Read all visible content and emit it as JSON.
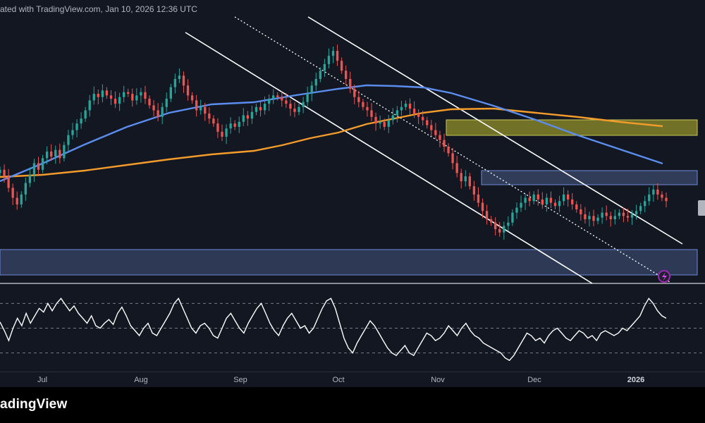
{
  "header": {
    "text": "ated with TradingView.com, Jan 10, 2026 12:36 UTC"
  },
  "footer": {
    "brand": "adingView"
  },
  "colors": {
    "background": "#131722",
    "candle_up": "#26a69a",
    "candle_down": "#ef5350",
    "ma_blue": "#5b8def",
    "ma_orange": "#f39c2b",
    "channel": "#ffffff",
    "zone_yellow": "#8a8a2a",
    "zone_blue": "#3b4a6b",
    "oscillator": "#ffffff"
  },
  "chart_data": {
    "type": "candlestick",
    "title": "",
    "x_axis": {
      "labels": [
        "Jul",
        "Aug",
        "Sep",
        "Oct",
        "Nov",
        "Dec",
        "2026"
      ],
      "bold_labels": [
        "2026"
      ]
    },
    "date_range": [
      "2025-06-16",
      "2026-01-10"
    ],
    "price_scale": "hidden (cropped)",
    "close_series_normalized": [
      0.48,
      0.44,
      0.37,
      0.31,
      0.27,
      0.33,
      0.4,
      0.45,
      0.52,
      0.48,
      0.55,
      0.59,
      0.56,
      0.6,
      0.55,
      0.63,
      0.69,
      0.72,
      0.76,
      0.79,
      0.84,
      0.9,
      0.94,
      0.92,
      0.96,
      0.93,
      0.91,
      0.88,
      0.92,
      0.95,
      0.94,
      0.9,
      0.93,
      0.95,
      0.91,
      0.87,
      0.84,
      0.8,
      0.86,
      0.91,
      0.98,
      1.03,
      1.05,
      0.99,
      0.93,
      0.9,
      0.84,
      0.86,
      0.82,
      0.79,
      0.76,
      0.71,
      0.68,
      0.73,
      0.76,
      0.74,
      0.77,
      0.81,
      0.79,
      0.83,
      0.86,
      0.84,
      0.88,
      0.91,
      0.93,
      0.92,
      0.9,
      0.88,
      0.85,
      0.83,
      0.86,
      0.89,
      0.94,
      0.99,
      1.03,
      1.08,
      1.12,
      1.17,
      1.2,
      1.14,
      1.08,
      1.03,
      0.97,
      0.92,
      0.89,
      0.86,
      0.84,
      0.8,
      0.76,
      0.77,
      0.74,
      0.78,
      0.81,
      0.84,
      0.86,
      0.88,
      0.85,
      0.82,
      0.8,
      0.78,
      0.75,
      0.72,
      0.69,
      0.66,
      0.62,
      0.58,
      0.52,
      0.46,
      0.41,
      0.44,
      0.38,
      0.33,
      0.28,
      0.23,
      0.18,
      0.16,
      0.12,
      0.1,
      0.14,
      0.16,
      0.22,
      0.25,
      0.28,
      0.31,
      0.29,
      0.33,
      0.3,
      0.27,
      0.31,
      0.28,
      0.26,
      0.29,
      0.33,
      0.3,
      0.27,
      0.24,
      0.21,
      0.18,
      0.2,
      0.17,
      0.19,
      0.22,
      0.2,
      0.18,
      0.2,
      0.22,
      0.2,
      0.19,
      0.21,
      0.23,
      0.26,
      0.29,
      0.33,
      0.36,
      0.33,
      0.31,
      0.29
    ],
    "moving_averages": [
      {
        "name": "",
        "color": "#5b8def",
        "shape": "rising then falling"
      },
      {
        "name": "",
        "color": "#f39c2b",
        "shape": "slow rising then flattening"
      }
    ],
    "zones": [
      {
        "label": "",
        "color": "#8a8a2a",
        "note": "upper resistance band"
      },
      {
        "label": "",
        "color": "#3b4a6b",
        "note": "middle resistance band"
      },
      {
        "label": "",
        "color": "#3b4a6b",
        "note": "lower support band"
      }
    ],
    "oscillator": {
      "levels": [
        70,
        50,
        30
      ],
      "values": [
        55,
        48,
        40,
        50,
        58,
        52,
        62,
        54,
        60,
        66,
        63,
        70,
        64,
        70,
        74,
        69,
        64,
        68,
        62,
        58,
        54,
        60,
        52,
        50,
        54,
        57,
        53,
        62,
        67,
        60,
        52,
        48,
        44,
        50,
        54,
        46,
        44,
        50,
        56,
        62,
        70,
        74,
        66,
        58,
        50,
        46,
        52,
        54,
        50,
        44,
        42,
        50,
        58,
        62,
        56,
        50,
        46,
        54,
        60,
        66,
        70,
        62,
        54,
        48,
        44,
        52,
        58,
        62,
        56,
        50,
        52,
        46,
        50,
        58,
        66,
        72,
        74,
        66,
        54,
        42,
        34,
        30,
        38,
        44,
        50,
        56,
        52,
        46,
        40,
        34,
        30,
        28,
        32,
        36,
        30,
        28,
        34,
        40,
        46,
        44,
        40,
        42,
        46,
        52,
        48,
        44,
        50,
        54,
        48,
        44,
        42,
        38,
        36,
        34,
        32,
        30,
        26,
        24,
        28,
        34,
        40,
        46,
        44,
        40,
        42,
        38,
        44,
        48,
        50,
        46,
        42,
        40,
        44,
        48,
        46,
        42,
        44,
        40,
        46,
        48,
        46,
        44,
        46,
        50,
        48,
        52,
        56,
        60,
        68,
        74,
        70,
        64,
        60,
        58
      ]
    }
  }
}
